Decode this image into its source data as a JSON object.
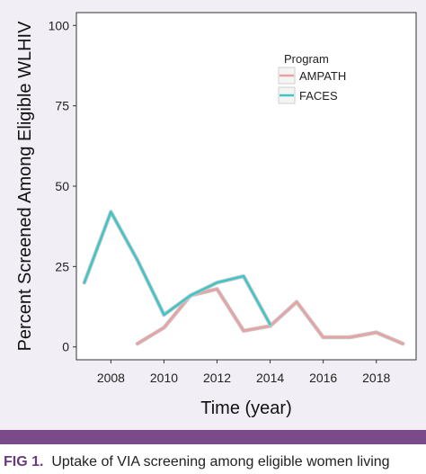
{
  "chart_data": {
    "type": "line",
    "title": "",
    "xlabel": "Time (year)",
    "ylabel": "Percent Screened Among Eligible WLHIV",
    "xlim": [
      2006.7,
      2019.5
    ],
    "ylim": [
      -4,
      104
    ],
    "x_ticks": [
      2008,
      2010,
      2012,
      2014,
      2016,
      2018
    ],
    "y_ticks": [
      0,
      25,
      50,
      75,
      100
    ],
    "grid": false,
    "legend": {
      "title": "Program",
      "position": "top-right"
    },
    "series": [
      {
        "name": "AMPATH",
        "color": "#e8a2a2",
        "x": [
          2009,
          2010,
          2011,
          2012,
          2013,
          2014,
          2015,
          2016,
          2017,
          2018,
          2019
        ],
        "y": [
          1,
          6,
          16,
          18,
          5,
          6.5,
          14,
          3,
          3,
          4.5,
          1
        ]
      },
      {
        "name": "FACES",
        "color": "#3cc6c8",
        "x": [
          2007,
          2008,
          2009,
          2010,
          2011,
          2012,
          2013,
          2014
        ],
        "y": [
          20,
          42,
          27,
          10,
          16,
          20,
          22,
          7
        ]
      }
    ]
  },
  "caption": {
    "label": "FIG 1.",
    "text": "Uptake of VIA screening among eligible women living"
  }
}
